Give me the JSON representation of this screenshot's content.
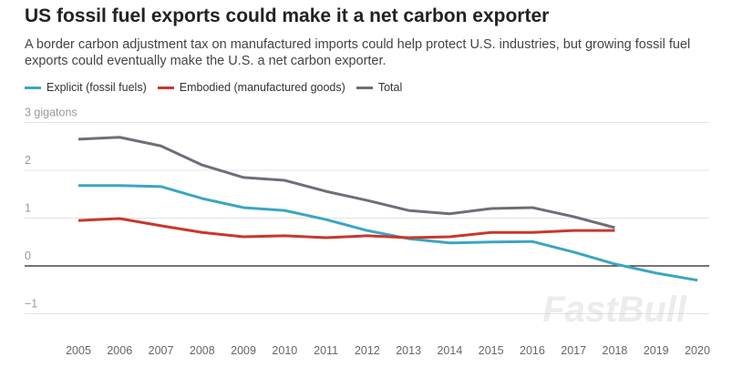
{
  "title": "US fossil fuel exports could make it a net carbon exporter",
  "subtitle": "A border carbon adjustment tax on manufactured imports could help protect U.S. industries, but growing fossil fuel exports could eventually make the U.S. a net carbon exporter.",
  "watermark": "FastBull",
  "chart_data": {
    "type": "line",
    "title": "US fossil fuel exports could make it a net carbon exporter",
    "ylabel": "",
    "y_unit_label": "3 gigatons",
    "ylim": [
      -1,
      3
    ],
    "yticks": [
      "−1",
      "0",
      "1",
      "2",
      "3 gigatons"
    ],
    "ytick_values": [
      -1,
      0,
      1,
      2,
      3
    ],
    "grid": true,
    "legend": "top-left",
    "x": [
      2005,
      2006,
      2007,
      2008,
      2009,
      2010,
      2011,
      2012,
      2013,
      2014,
      2015,
      2016,
      2017,
      2018,
      2019,
      2020
    ],
    "series": [
      {
        "name": "Explicit (fossil fuels)",
        "color": "#3aa6c4",
        "values": [
          1.68,
          1.68,
          1.66,
          1.41,
          1.22,
          1.16,
          0.97,
          0.74,
          0.57,
          0.48,
          0.5,
          0.51,
          0.29,
          0.04,
          -0.15,
          -0.3
        ]
      },
      {
        "name": "Embodied (manufactured goods)",
        "color": "#c9372c",
        "values": [
          0.95,
          0.99,
          0.84,
          0.7,
          0.61,
          0.63,
          0.59,
          0.63,
          0.59,
          0.61,
          0.7,
          0.7,
          0.74,
          0.74,
          null,
          null
        ]
      },
      {
        "name": "Total",
        "color": "#6e6e78",
        "values": [
          2.65,
          2.69,
          2.51,
          2.11,
          1.85,
          1.79,
          1.56,
          1.37,
          1.16,
          1.09,
          1.2,
          1.22,
          1.03,
          0.8,
          null,
          null
        ]
      }
    ]
  }
}
